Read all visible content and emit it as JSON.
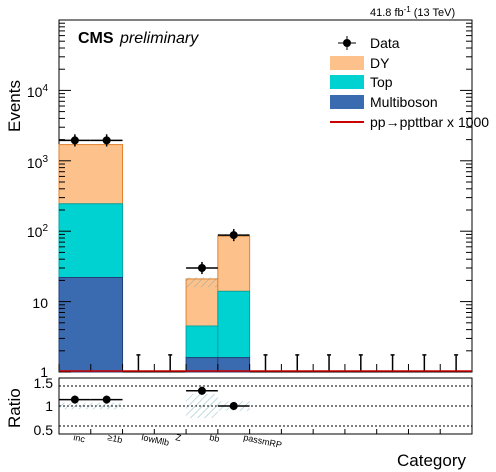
{
  "header": {
    "lumi": "41.8 fb",
    "lumi_exp": "-1",
    "energy": "(13 TeV)"
  },
  "label": {
    "experiment": "CMS",
    "status": "preliminary"
  },
  "colors": {
    "DY": "#fdc28b",
    "DY_edge": "#e3822e",
    "Top": "#00d2d2",
    "Top_edge": "#00a6a6",
    "Multiboson": "#3a6bb0",
    "Multiboson_edge": "#1f3f77",
    "signal": "#cc0000",
    "data": "#000000",
    "ref_line": "#999999"
  },
  "chart_data": [
    {
      "type": "bar",
      "stacked": true,
      "log_y": true,
      "ylabel": "Events",
      "xlabel": "Category",
      "ylim": [
        1,
        100000
      ],
      "xlim": [
        0,
        13
      ],
      "y_tick_labels": [
        "1",
        "10",
        "10^2",
        "10^3",
        "10^4"
      ],
      "categories": [
        "inc",
        "≥1b",
        "lowMlb",
        "Z",
        "bb",
        "passmRP"
      ],
      "category_positions": [
        1,
        2,
        3,
        4,
        5,
        6
      ],
      "series": [
        {
          "name": "Multiboson",
          "bins": [
            [
              0,
              2,
              22
            ],
            [
              4,
              5,
              1.6
            ],
            [
              5,
              6,
              1.6
            ]
          ]
        },
        {
          "name": "Top",
          "bins": [
            [
              0,
              2,
              245
            ],
            [
              4,
              5,
              4.5
            ],
            [
              5,
              6,
              14
            ]
          ]
        },
        {
          "name": "DY",
          "bins": [
            [
              0,
              2,
              1700
            ],
            [
              4,
              5,
              21
            ],
            [
              5,
              6,
              85
            ]
          ]
        }
      ],
      "data": [
        {
          "x": 0.5,
          "xerr": 0.5,
          "y": 1950
        },
        {
          "x": 1.5,
          "xerr": 0.5,
          "y": 1950
        },
        {
          "x": 4.5,
          "xerr": 0.5,
          "y": 30
        },
        {
          "x": 5.5,
          "xerr": 0.5,
          "y": 88
        }
      ],
      "empty_bins": [
        2.5,
        3.5,
        6.5,
        7.5,
        8.5,
        9.5,
        10.5,
        11.5,
        12.5
      ],
      "legend": [
        {
          "name": "Data",
          "style": "marker"
        },
        {
          "name": "DY",
          "style": "fill"
        },
        {
          "name": "Top",
          "style": "fill"
        },
        {
          "name": "Multiboson",
          "style": "fill"
        },
        {
          "name": "pp→ppttbar x 1000",
          "style": "line"
        }
      ],
      "legend_position": "top-right"
    },
    {
      "type": "scatter",
      "ylabel": "Ratio",
      "ylim": [
        0.3,
        1.7
      ],
      "y_tick_labels": [
        "0.5",
        "1",
        "1.5"
      ],
      "reference_lines": [
        0.5,
        1.0,
        1.5
      ],
      "points": [
        {
          "x": 0.5,
          "xerr": 0.5,
          "y": 1.16
        },
        {
          "x": 1.5,
          "xerr": 0.5,
          "y": 1.16
        },
        {
          "x": 4.5,
          "xerr": 0.5,
          "y": 1.38
        },
        {
          "x": 5.5,
          "xerr": 0.5,
          "y": 1.0
        }
      ]
    }
  ]
}
